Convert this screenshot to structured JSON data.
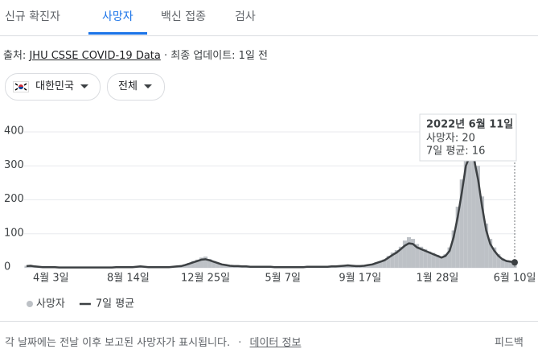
{
  "tabs": [
    "신규 확진자",
    "사망자",
    "백신 접종",
    "검사"
  ],
  "selected_tab": 1,
  "source": {
    "label": "출처:",
    "link": "JHU CSSE COVID-19 Data",
    "updated": "· 최종 업데이트: 1일 전"
  },
  "filters": [
    "대한민국",
    "전체"
  ],
  "chart_data": {
    "type": "combo",
    "categories": [
      null,
      null,
      null,
      null,
      null,
      null,
      "4월 3일",
      null,
      null,
      null,
      null,
      null,
      null,
      null,
      null,
      null,
      null,
      null,
      null,
      null,
      null,
      null,
      null,
      null,
      null,
      "8월 14일",
      null,
      null,
      null,
      null,
      null,
      null,
      null,
      null,
      null,
      null,
      null,
      null,
      null,
      null,
      null,
      null,
      null,
      null,
      "12월 25일",
      null,
      null,
      null,
      null,
      null,
      null,
      null,
      null,
      null,
      null,
      null,
      null,
      null,
      null,
      null,
      null,
      null,
      null,
      "5월 7일",
      null,
      null,
      null,
      null,
      null,
      null,
      null,
      null,
      null,
      null,
      null,
      null,
      null,
      null,
      null,
      null,
      null,
      null,
      "9월 17일",
      null,
      null,
      null,
      null,
      null,
      null,
      null,
      null,
      null,
      null,
      null,
      null,
      null,
      null,
      null,
      null,
      null,
      null,
      "1월 28일",
      null,
      null,
      null,
      null,
      null,
      null,
      null,
      null,
      null,
      null,
      null,
      null,
      null,
      null,
      null,
      null,
      null,
      null,
      "6월 10일"
    ],
    "series": [
      {
        "name": "사망자",
        "type": "bar",
        "color": "#bdc1c6",
        "values": [
          6,
          7,
          5,
          3,
          2,
          3,
          2,
          3,
          1,
          2,
          1,
          1,
          1,
          2,
          1,
          1,
          1,
          2,
          1,
          1,
          1,
          2,
          2,
          3,
          2,
          2,
          3,
          4,
          5,
          3,
          2,
          3,
          2,
          2,
          2,
          3,
          3,
          5,
          6,
          10,
          14,
          20,
          24,
          30,
          33,
          26,
          20,
          15,
          11,
          9,
          7,
          5,
          6,
          4,
          5,
          3,
          4,
          3,
          3,
          4,
          3,
          2,
          3,
          2,
          3,
          2,
          2,
          3,
          2,
          3,
          4,
          3,
          3,
          4,
          3,
          5,
          5,
          6,
          7,
          8,
          7,
          6,
          5,
          7,
          9,
          12,
          16,
          20,
          25,
          35,
          45,
          52,
          62,
          80,
          90,
          85,
          70,
          62,
          55,
          48,
          44,
          38,
          32,
          40,
          60,
          110,
          180,
          260,
          350,
          395,
          380,
          300,
          210,
          130,
          85,
          60,
          40,
          28,
          22,
          20,
          20
        ]
      },
      {
        "name": "7일 평균",
        "type": "line",
        "color": "#3c4043",
        "values": [
          5,
          6,
          4,
          3,
          2,
          2,
          2,
          2,
          1,
          1,
          1,
          1,
          1,
          1,
          1,
          1,
          1,
          1,
          1,
          1,
          1,
          1,
          2,
          2,
          2,
          2,
          2,
          3,
          4,
          3,
          2,
          2,
          2,
          2,
          2,
          2,
          3,
          4,
          5,
          8,
          12,
          16,
          20,
          24,
          25,
          22,
          18,
          14,
          10,
          8,
          6,
          5,
          5,
          4,
          4,
          3,
          3,
          3,
          3,
          3,
          3,
          2,
          2,
          2,
          2,
          2,
          2,
          2,
          2,
          3,
          3,
          3,
          3,
          3,
          3,
          4,
          4,
          5,
          6,
          7,
          6,
          5,
          5,
          6,
          8,
          10,
          14,
          18,
          22,
          30,
          38,
          45,
          55,
          65,
          72,
          70,
          60,
          55,
          50,
          45,
          40,
          35,
          30,
          35,
          50,
          90,
          150,
          220,
          300,
          330,
          320,
          260,
          180,
          110,
          70,
          50,
          35,
          25,
          20,
          18,
          16
        ]
      }
    ],
    "ylim": [
      0,
      400
    ],
    "yticks": [
      0,
      100,
      200,
      300,
      400
    ],
    "grid": true,
    "tooltip": {
      "date": "2022년 6월 11일",
      "lines": [
        "사망자: 20",
        "7일 평균: 16"
      ]
    }
  },
  "footer": {
    "note": "각 날짜에는 전날 이후 보고된 사망자가 표시됩니다.",
    "sep": "·",
    "link": "데이터 정보",
    "feedback": "피드백"
  }
}
